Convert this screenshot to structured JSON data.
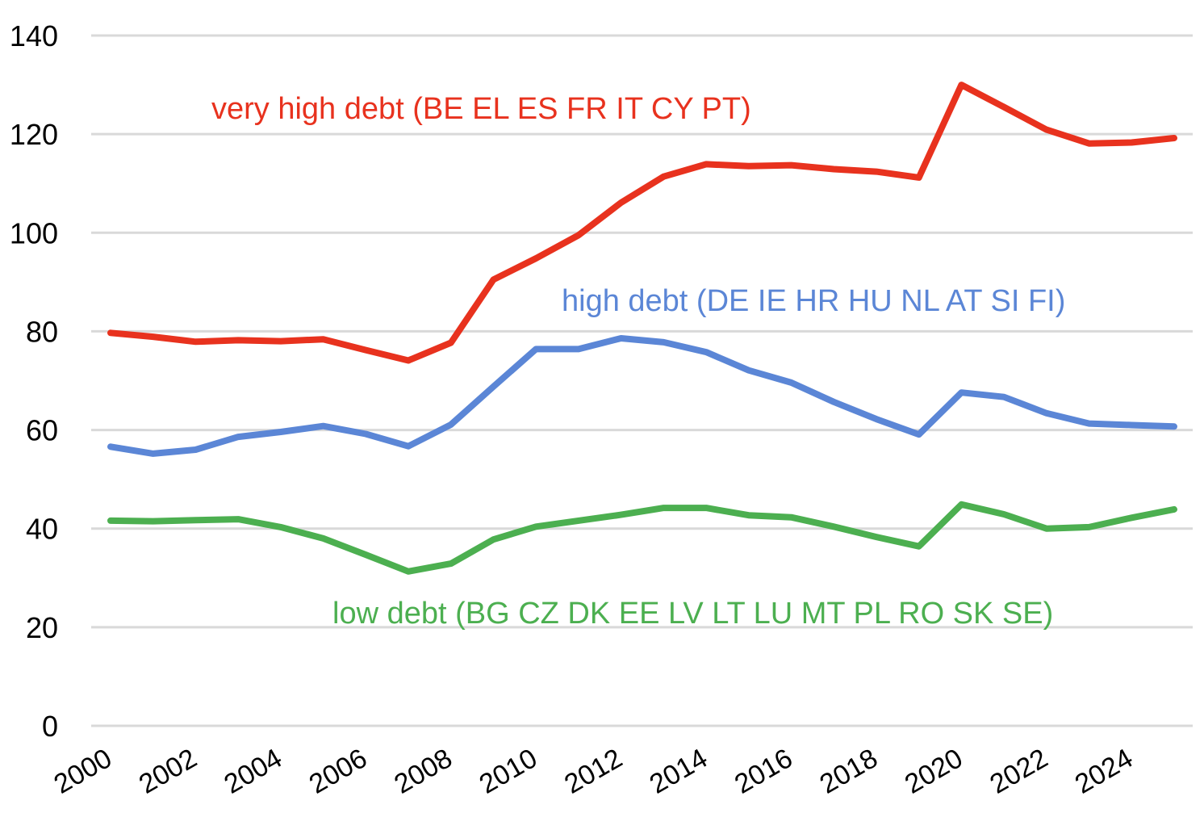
{
  "chart_data": {
    "type": "line",
    "x": [
      2000,
      2001,
      2002,
      2003,
      2004,
      2005,
      2006,
      2007,
      2008,
      2009,
      2010,
      2011,
      2012,
      2013,
      2014,
      2015,
      2016,
      2017,
      2018,
      2019,
      2020,
      2021,
      2022,
      2023,
      2024,
      2025
    ],
    "x_tick_labels": [
      "2000",
      "2002",
      "2004",
      "2006",
      "2008",
      "2010",
      "2012",
      "2014",
      "2016",
      "2018",
      "2020",
      "2022",
      "2024"
    ],
    "y_ticks": [
      0,
      20,
      40,
      60,
      80,
      100,
      120,
      140
    ],
    "ylim": [
      0,
      140
    ],
    "grid": "horizontal",
    "legend": "inline labels",
    "series": [
      {
        "name": "very high debt (BE EL ES FR IT CY PT)",
        "color": "#e8321e",
        "values": [
          79.7,
          78.9,
          77.9,
          78.2,
          78.0,
          78.4,
          76.2,
          74.1,
          77.7,
          90.5,
          94.8,
          99.5,
          106.1,
          111.4,
          113.9,
          113.5,
          113.7,
          112.9,
          112.4,
          111.2,
          130.0,
          125.5,
          120.9,
          118.1,
          118.3,
          119.2
        ]
      },
      {
        "name": "high debt (DE IE HR HU NL AT SI FI)",
        "color": "#5b86d6",
        "values": [
          56.6,
          55.2,
          56.0,
          58.6,
          59.6,
          60.8,
          59.2,
          56.7,
          61.1,
          68.8,
          76.4,
          76.4,
          78.6,
          77.8,
          75.8,
          72.1,
          69.6,
          65.7,
          62.2,
          59.1,
          67.6,
          66.7,
          63.4,
          61.3,
          61.0,
          60.7
        ]
      },
      {
        "name": "low debt (BG CZ DK EE LV LT LU MT PL RO SK SE)",
        "color": "#4caf50",
        "values": [
          41.6,
          41.5,
          41.7,
          41.9,
          40.3,
          38.0,
          34.7,
          31.3,
          32.9,
          37.8,
          40.4,
          41.6,
          42.8,
          44.2,
          44.2,
          42.7,
          42.3,
          40.4,
          38.3,
          36.4,
          44.9,
          42.9,
          40.0,
          40.3,
          42.2,
          43.9
        ]
      }
    ]
  }
}
